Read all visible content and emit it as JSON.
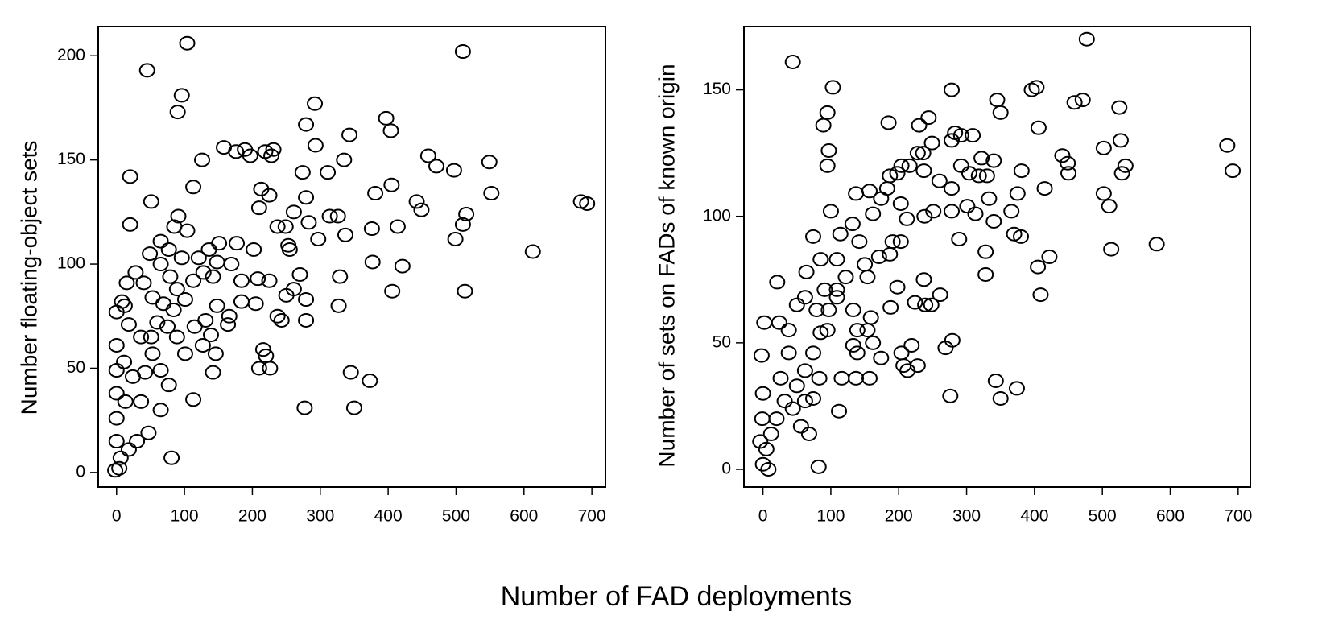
{
  "xlabel": "Number of FAD deployments",
  "chart_data": [
    {
      "type": "scatter",
      "ylabel": "Number floating-object sets",
      "xlim": [
        -27,
        720
      ],
      "ylim": [
        -7,
        214
      ],
      "xticks": [
        0,
        100,
        200,
        300,
        400,
        500,
        600,
        700
      ],
      "yticks": [
        0,
        50,
        100,
        150,
        200
      ],
      "color": "#000000",
      "x": [
        45,
        104,
        510,
        96,
        90,
        292,
        397,
        404,
        343,
        279,
        459,
        471,
        497,
        549,
        552,
        515,
        510,
        499,
        513,
        613,
        684,
        693,
        442,
        449,
        405,
        421,
        406,
        414,
        381,
        376,
        377,
        373,
        345,
        350,
        277,
        327,
        329,
        337,
        335,
        311,
        274,
        279,
        283,
        293,
        314,
        326,
        219,
        228,
        231,
        189,
        158,
        176,
        197,
        126,
        113,
        20,
        20,
        51,
        115,
        81,
        113,
        210,
        226,
        216,
        220,
        142,
        146,
        139,
        243,
        237,
        279,
        279,
        250,
        261,
        225,
        208,
        205,
        184,
        166,
        164,
        184,
        202,
        210,
        213,
        225,
        237,
        249,
        255,
        261,
        297,
        253,
        270,
        177,
        169,
        151,
        136,
        121,
        104,
        91,
        85,
        65,
        49,
        65,
        79,
        89,
        101,
        84,
        69,
        53,
        40,
        28,
        15,
        12,
        18,
        36,
        53,
        65,
        77,
        65,
        47,
        30,
        18,
        6,
        4,
        -2,
        0,
        0,
        0,
        0,
        0,
        0,
        8,
        11,
        13,
        24,
        36,
        42,
        51,
        60,
        75,
        89,
        101,
        127,
        131,
        148,
        128,
        142,
        148,
        113,
        96,
        77
      ],
      "y": [
        193,
        206,
        202,
        181,
        173,
        177,
        170,
        164,
        162,
        167,
        152,
        147,
        145,
        149,
        134,
        124,
        119,
        112,
        87,
        106,
        130,
        129,
        130,
        126,
        138,
        99,
        87,
        118,
        134,
        117,
        101,
        44,
        48,
        31,
        31,
        80,
        94,
        114,
        150,
        144,
        144,
        132,
        120,
        157,
        123,
        123,
        154,
        152,
        155,
        155,
        156,
        154,
        152,
        150,
        137,
        142,
        119,
        130,
        70,
        7,
        35,
        50,
        50,
        59,
        56,
        48,
        57,
        66,
        73,
        75,
        73,
        83,
        85,
        88,
        92,
        93,
        81,
        82,
        75,
        71,
        92,
        107,
        127,
        136,
        133,
        118,
        118,
        107,
        125,
        112,
        109,
        95,
        110,
        100,
        110,
        107,
        103,
        116,
        123,
        118,
        111,
        105,
        100,
        94,
        88,
        83,
        78,
        81,
        84,
        91,
        96,
        91,
        80,
        71,
        65,
        57,
        49,
        42,
        30,
        19,
        15,
        11,
        7,
        2,
        1,
        15,
        26,
        38,
        49,
        61,
        77,
        82,
        53,
        34,
        46,
        34,
        48,
        65,
        72,
        70,
        65,
        57,
        61,
        73,
        80,
        96,
        94,
        101,
        92,
        103,
        107
      ]
    },
    {
      "type": "scatter",
      "ylabel": "Number of sets on FADs of known origin",
      "xlim": [
        -28,
        718
      ],
      "ylim": [
        -7,
        175
      ],
      "xticks": [
        0,
        100,
        200,
        300,
        400,
        500,
        600,
        700
      ],
      "yticks": [
        0,
        50,
        100,
        150
      ],
      "color": "#000000",
      "x": [
        44,
        477,
        103,
        95,
        89,
        97,
        95,
        100,
        185,
        230,
        244,
        278,
        345,
        350,
        396,
        403,
        406,
        459,
        471,
        525,
        527,
        502,
        534,
        529,
        441,
        449,
        450,
        415,
        502,
        510,
        513,
        580,
        684,
        692,
        381,
        375,
        366,
        370,
        380,
        405,
        422,
        409,
        343,
        350,
        374,
        276,
        279,
        269,
        328,
        328,
        333,
        340,
        330,
        318,
        304,
        309,
        292,
        283,
        278,
        322,
        340,
        292,
        289,
        301,
        313,
        278,
        278,
        260,
        249,
        236,
        228,
        237,
        216,
        204,
        198,
        187,
        183,
        174,
        162,
        157,
        137,
        203,
        212,
        238,
        251,
        237,
        224,
        239,
        248,
        261,
        219,
        207,
        213,
        228,
        204,
        174,
        157,
        137,
        116,
        112,
        139,
        133,
        162,
        154,
        171,
        187,
        191,
        203,
        188,
        198,
        85,
        82,
        74,
        85,
        109,
        114,
        132,
        142,
        150,
        122,
        109,
        97,
        95,
        74,
        62,
        50,
        32,
        20,
        12,
        5,
        0,
        8,
        -4,
        -1,
        0,
        -2,
        2,
        21,
        24,
        38,
        26,
        44,
        56,
        68,
        62,
        74,
        83,
        50,
        38,
        62,
        64,
        79,
        91,
        109,
        133,
        159,
        139,
        154
      ],
      "y": [
        161,
        170,
        151,
        141,
        136,
        126,
        120,
        102,
        137,
        136,
        139,
        150,
        146,
        141,
        150,
        151,
        135,
        145,
        146,
        143,
        130,
        127,
        120,
        117,
        124,
        121,
        117,
        111,
        109,
        104,
        87,
        89,
        128,
        118,
        118,
        109,
        102,
        93,
        92,
        80,
        84,
        69,
        35,
        28,
        32,
        29,
        51,
        48,
        77,
        86,
        107,
        98,
        116,
        116,
        117,
        132,
        132,
        133,
        130,
        123,
        122,
        120,
        91,
        104,
        101,
        102,
        111,
        114,
        129,
        125,
        125,
        118,
        120,
        120,
        117,
        116,
        111,
        107,
        101,
        110,
        109,
        105,
        99,
        100,
        102,
        75,
        66,
        65,
        65,
        69,
        49,
        41,
        39,
        41,
        46,
        44,
        36,
        36,
        36,
        23,
        46,
        49,
        50,
        76,
        84,
        85,
        90,
        90,
        64,
        72,
        54,
        1,
        92,
        83,
        83,
        93,
        97,
        90,
        81,
        76,
        71,
        63,
        55,
        46,
        39,
        33,
        27,
        20,
        14,
        8,
        2,
        0,
        11,
        20,
        30,
        45,
        58,
        74,
        58,
        46,
        36,
        24,
        17,
        14,
        27,
        28,
        36,
        65,
        55,
        68,
        78,
        63,
        71,
        68,
        63,
        60,
        55,
        55
      ]
    }
  ]
}
